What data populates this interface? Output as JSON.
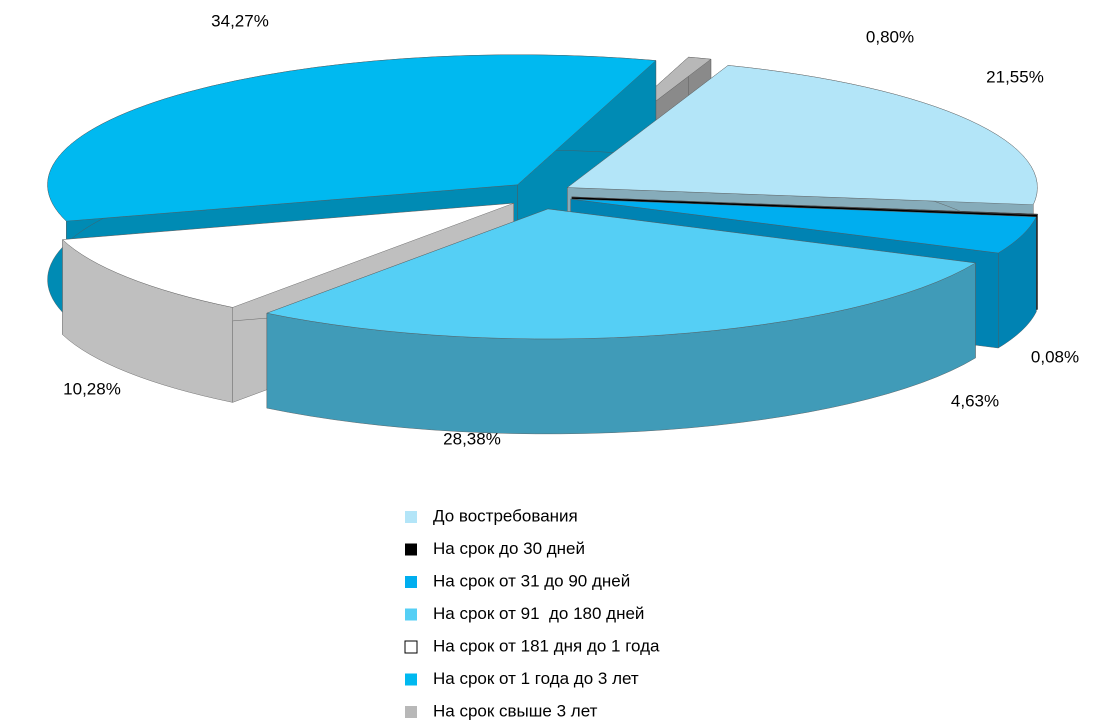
{
  "chart_data": {
    "type": "pie",
    "categories": [
      "До востребования",
      "На срок до 30 дней",
      "На срок от 31 до 90 дней",
      "На срок от 91  до 180 дней",
      "На срок от 181 дня до 1 года",
      "На срок от 1 года до 3 лет",
      "На срок свыше 3 лет"
    ],
    "values": [
      21.55,
      0.08,
      4.63,
      28.38,
      10.28,
      34.27,
      0.8
    ],
    "value_labels": [
      "21,55%",
      "0,08%",
      "4,63%",
      "28,38%",
      "10,28%",
      "34,27%",
      "0,80%"
    ],
    "colors": [
      "#b3e5f8",
      "#000000",
      "#00aeef",
      "#55cff5",
      "#ffffff",
      "#00b9f0",
      "#b8b8b8"
    ],
    "legend": "bottom"
  }
}
